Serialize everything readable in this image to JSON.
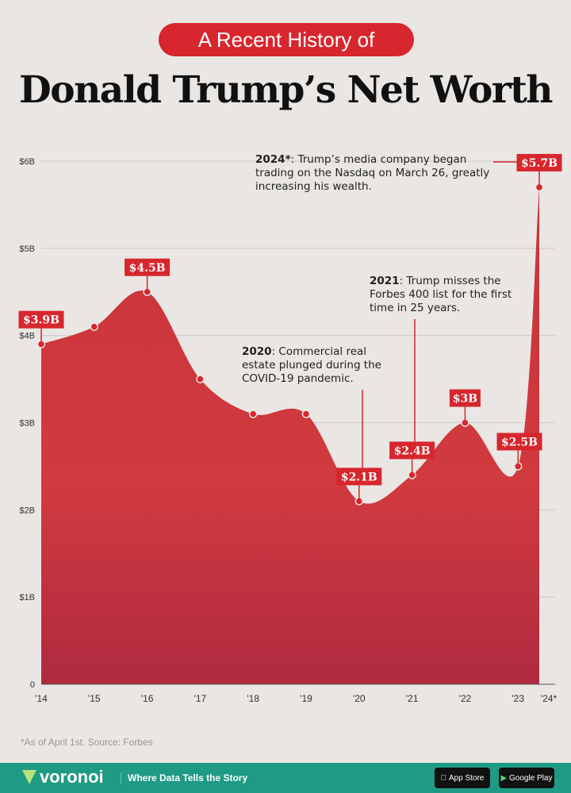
{
  "header": {
    "kicker": "A Recent History of",
    "title": "Donald Trump’s Net Worth"
  },
  "chart_data": {
    "type": "area",
    "title": "Donald Trump’s Net Worth",
    "categories": [
      "'14",
      "'15",
      "'16",
      "'17",
      "'18",
      "'19",
      "'20",
      "'21",
      "'22",
      "'23",
      "'24*"
    ],
    "values": [
      3.9,
      4.1,
      4.5,
      3.5,
      3.1,
      3.1,
      2.1,
      2.4,
      3.0,
      2.5,
      5.7
    ],
    "unit": "billion USD",
    "ylim": [
      0,
      6
    ],
    "yticks": [
      "0",
      "$1B",
      "$2B",
      "$3B",
      "$4B",
      "$5B",
      "$6B"
    ],
    "grid": true,
    "color": "#d7262d",
    "data_labels": [
      {
        "index": 0,
        "text": "$3.9B"
      },
      {
        "index": 2,
        "text": "$4.5B"
      },
      {
        "index": 6,
        "text": "$2.1B"
      },
      {
        "index": 7,
        "text": "$2.4B"
      },
      {
        "index": 8,
        "text": "$3B"
      },
      {
        "index": 9,
        "text": "$2.5B"
      },
      {
        "index": 10,
        "text": "$5.7B"
      }
    ],
    "annotations": [
      {
        "index": 10,
        "bold": "2024*",
        "text": ": Trump’s media company began trading on the Nasdaq on March 26, greatly increasing his wealth."
      },
      {
        "index": 7,
        "bold": "2021",
        "text": ": Trump misses the Forbes 400 list for the first time in 25 years."
      },
      {
        "index": 6,
        "bold": "2020",
        "text": ": Commercial real estate plunged during the COVID-19 pandemic."
      }
    ]
  },
  "source": "*As of April 1st. Source: Forbes",
  "footer": {
    "brand": "voronoi",
    "tagline": "Where Data Tells the Story",
    "app_store": "App Store",
    "google_play": "Google Play"
  }
}
